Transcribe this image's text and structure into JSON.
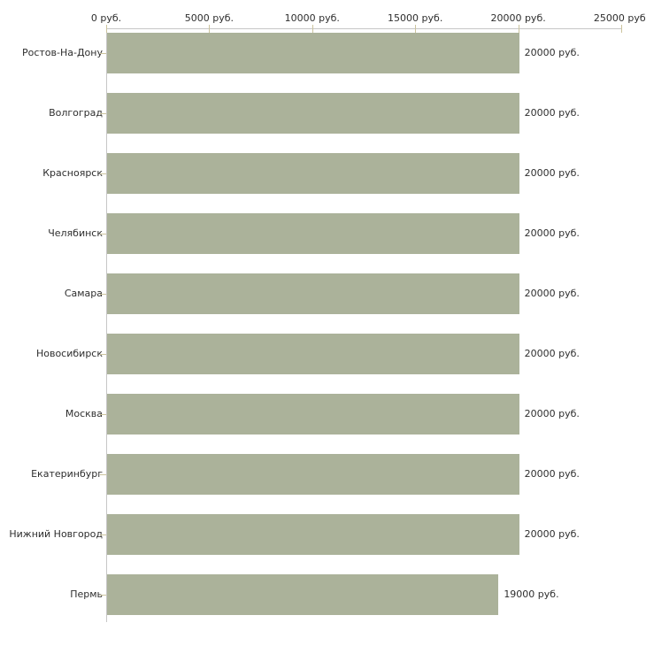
{
  "chart_data": {
    "type": "bar",
    "orientation": "horizontal",
    "title": "",
    "xlabel": "",
    "ylabel": "",
    "unit": "руб.",
    "xlim": [
      0,
      25000
    ],
    "grid": false,
    "legend": false,
    "x_tick_values": [
      0,
      5000,
      10000,
      15000,
      20000,
      25000
    ],
    "x_tick_labels": [
      "0 руб.",
      "5000 руб.",
      "10000 руб.",
      "15000 руб.",
      "20000 руб.",
      "25000 руб."
    ],
    "categories": [
      "Ростов-На-Дону",
      "Волгоград",
      "Красноярск",
      "Челябинск",
      "Самара",
      "Новосибирск",
      "Москва",
      "Екатеринбург",
      "Нижний Новгород",
      "Пермь"
    ],
    "values": [
      20000,
      20000,
      20000,
      20000,
      20000,
      20000,
      20000,
      20000,
      20000,
      19000
    ],
    "value_labels": [
      "20000 руб.",
      "20000 руб.",
      "20000 руб.",
      "20000 руб.",
      "20000 руб.",
      "20000 руб.",
      "20000 руб.",
      "20000 руб.",
      "20000 руб.",
      "19000 руб."
    ],
    "colors": {
      "bar": "#abb29a",
      "axis_line": "#c6c6c6",
      "tick": "#ccc49e",
      "text": "#2e2e2e",
      "background": "#ffffff"
    }
  }
}
